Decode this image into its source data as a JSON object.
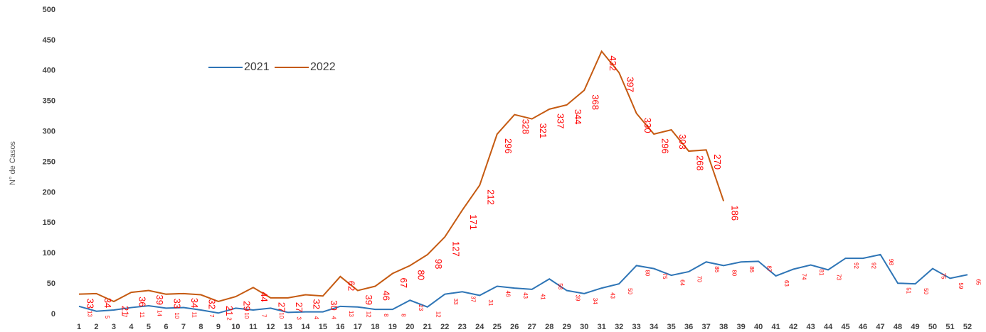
{
  "chart_data": {
    "type": "line",
    "y_label": "N° de Casos",
    "categories": [
      "1",
      "2",
      "3",
      "4",
      "5",
      "6",
      "7",
      "8",
      "9",
      "10",
      "11",
      "12",
      "13",
      "14",
      "15",
      "16",
      "17",
      "18",
      "19",
      "20",
      "21",
      "22",
      "23",
      "24",
      "25",
      "26",
      "27",
      "28",
      "29",
      "30",
      "31",
      "32",
      "33",
      "34",
      "35",
      "36",
      "37",
      "38",
      "39",
      "40",
      "41",
      "42",
      "43",
      "44",
      "45",
      "46",
      "47",
      "48",
      "49",
      "50",
      "51",
      "52"
    ],
    "series": [
      {
        "name": "2021",
        "color": "#2e75b6",
        "values": [
          13,
          5,
          7,
          11,
          14,
          10,
          11,
          7,
          2,
          10,
          7,
          10,
          3,
          4,
          4,
          13,
          12,
          8,
          8,
          23,
          12,
          33,
          37,
          31,
          46,
          43,
          41,
          58,
          39,
          34,
          43,
          50,
          80,
          75,
          64,
          70,
          86,
          80,
          86,
          87,
          63,
          74,
          81,
          73,
          92,
          92,
          98,
          51,
          50,
          75,
          59,
          65
        ]
      },
      {
        "name": "2022",
        "color": "#c55a11",
        "values": [
          33,
          34,
          21,
          36,
          39,
          33,
          34,
          32,
          21,
          29,
          44,
          27,
          27,
          32,
          30,
          62,
          39,
          46,
          67,
          80,
          98,
          127,
          171,
          212,
          296,
          328,
          321,
          337,
          344,
          368,
          432,
          397,
          330,
          296,
          303,
          268,
          270,
          186,
          null,
          null,
          null,
          null,
          null,
          null,
          null,
          null,
          null,
          null,
          null,
          null,
          null,
          null
        ]
      }
    ],
    "ylim": [
      0,
      500
    ],
    "yticks": [
      0,
      50,
      100,
      150,
      200,
      250,
      300,
      350,
      400,
      450,
      500
    ]
  }
}
